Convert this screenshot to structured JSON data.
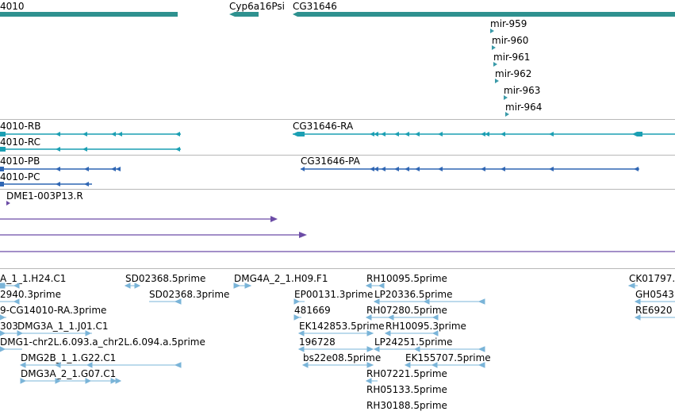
{
  "colors": {
    "gene": "#2e918f",
    "mirna": "#3a9aa8",
    "transcript_ra": "#1b9fb3",
    "transcript_pb": "#2f66b4",
    "primer": "#6c4ca6",
    "est": "#7ab4d8",
    "separator": "#b8b8b8"
  },
  "genes": {
    "left_gene": "4010",
    "pseudo": "Cyp6a16Psi",
    "right_gene": "CG31646"
  },
  "mirnas": [
    "mir-959",
    "mir-960",
    "mir-961",
    "mir-962",
    "mir-963",
    "mir-964"
  ],
  "transcripts": {
    "rb": "4010-RB",
    "rc": "4010-RC",
    "ra": "CG31646-RA",
    "pb": "4010-PB",
    "pc": "4010-PC",
    "pa": "CG31646-PA"
  },
  "primer_label": "DME1-003P13.R",
  "est_labels": {
    "e1": "A_1_1.H24.C1",
    "e2": "SD02368.5prime",
    "e3": "DMG4A_2_1.H09.F1",
    "e4": "RH10095.5prime",
    "e5": "CK01797.",
    "e6": "2940.3prime",
    "e7": "SD02368.3prime",
    "e8": "EP00131.3prime",
    "e9": "LP20336.5prime",
    "e10": "GH0543",
    "e11": "9-CG14010-RA.3prime",
    "e12": "481669",
    "e13": "RH07280.5prime",
    "e14": "RE6920",
    "e15": "303",
    "e16": "DMG3A_1_1.J01.C1",
    "e17": "EK142853.5prime",
    "e18": "RH10095.3prime",
    "e19": "DMG1-chr2L.6.093.a_chr2L.6.094.a.5prime",
    "e20": "196728",
    "e21": "LP24251.5prime",
    "e22": "DMG2B_1_1.G22.C1",
    "e23": "bs22e08.5prime",
    "e24": "EK155707.5prime",
    "e25": "DMG3A_2_1.G07.C1",
    "e26": "RH07221.5prime",
    "e27": "RH05133.5prime",
    "e28": "RH30188.5prime"
  }
}
